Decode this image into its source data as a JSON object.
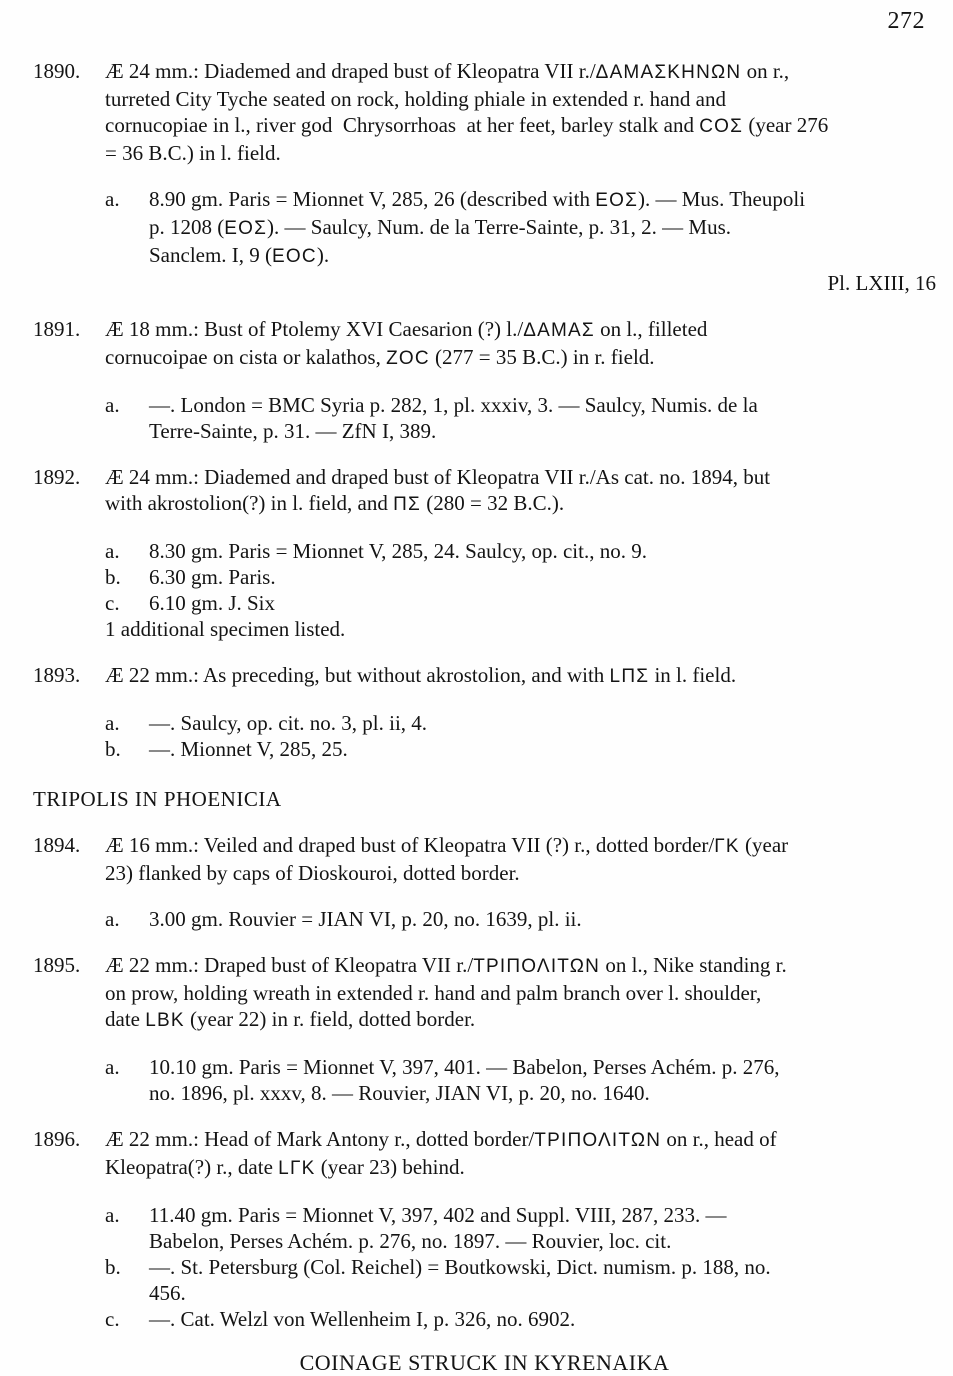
{
  "page_number": "272",
  "content": [
    {
      "type": "entry",
      "number": "1890.",
      "desc": [
        "Æ 24 mm.: Diademed and draped bust of Kleopatra VII r./ΔΑΜΑΣΚΗΝΩΝ on r.,",
        "turreted City Tyche seated on rock, holding phiale in extended r. hand and",
        "cornucopiae in l., river god  Chrysorrhoas  at her feet, barley stalk and ϹΟΣ (year 276",
        "= 36 B.C.) in l. field."
      ],
      "specimens": [
        {
          "label": "a.",
          "lines": [
            "8.90 gm. Paris = Mionnet V, 285, 26 (described with ΕΟΣ). — Mus. Theupoli",
            "p. 1208 (ΕΟΣ). — Saulcy, Num. de la Terre-Sainte, p. 31, 2. — Mus.",
            "Sanclem. I, 9 (ΕΟϹ)."
          ]
        }
      ],
      "plate": "Pl. LXIII, 16"
    },
    {
      "type": "entry",
      "number": "1891.",
      "desc": [
        "Æ 18 mm.: Bust of Ptolemy XVI Caesarion (?) l./ΔΑΜΑΣ on l., filleted",
        "cornucoipae on cista or kalathos, ΖΟϹ (277 = 35 B.C.) in r. field."
      ],
      "specimens": [
        {
          "label": "a.",
          "lines": [
            "—. London = BMC Syria p. 282, 1, pl. xxxiv, 3. — Saulcy, Numis. de la",
            "Terre-Sainte, p. 31. — ZfN I, 389."
          ]
        }
      ]
    },
    {
      "type": "entry",
      "number": "1892.",
      "desc": [
        "Æ 24 mm.: Diademed and draped bust of Kleopatra VII r./As cat. no. 1894, but",
        "with akrostolion(?) in l. field, and ΠΣ (280 = 32 B.C.)."
      ],
      "specimens": [
        {
          "label": "a.",
          "lines": [
            "8.30 gm. Paris = Mionnet V, 285, 24. Saulcy, op. cit., no. 9."
          ]
        },
        {
          "label": "b.",
          "lines": [
            "6.30 gm. Paris."
          ]
        },
        {
          "label": "c.",
          "lines": [
            "6.10 gm. J. Six"
          ]
        }
      ],
      "note": "1 additional specimen listed."
    },
    {
      "type": "entry",
      "number": "1893.",
      "desc": [
        "Æ 22 mm.: As preceding, but without akrostolion, and with LΠΣ in l. field."
      ],
      "specimens": [
        {
          "label": "a.",
          "lines": [
            "—. Saulcy, op. cit. no. 3, pl. ii, 4."
          ]
        },
        {
          "label": "b.",
          "lines": [
            "—. Mionnet V, 285, 25."
          ]
        }
      ]
    },
    {
      "type": "heading",
      "text": "TRIPOLIS IN PHOENICIA"
    },
    {
      "type": "entry",
      "number": "1894.",
      "desc": [
        "Æ 16 mm.: Veiled and draped bust of Kleopatra VII (?) r., dotted border/ΓΚ (year",
        "23) flanked by caps of Dioskouroi, dotted border."
      ],
      "specimens": [
        {
          "label": "a.",
          "lines": [
            "3.00 gm. Rouvier = JIAN VI, p. 20, no. 1639, pl. ii."
          ]
        }
      ]
    },
    {
      "type": "entry",
      "number": "1895.",
      "desc": [
        "Æ 22 mm.: Draped bust of Kleopatra VII r./ΤΡΙΠΟΛΙΤΩΝ on l., Nike standing r.",
        "on prow, holding wreath in extended r. hand and palm branch over l. shoulder,",
        "date LΒΚ (year 22) in r. field, dotted border."
      ],
      "specimens": [
        {
          "label": "a.",
          "lines": [
            "10.10 gm. Paris = Mionnet V, 397, 401. — Babelon, Perses Achém. p. 276,",
            "no. 1896, pl. xxxv, 8. — Rouvier, JIAN VI, p. 20, no. 1640."
          ]
        }
      ]
    },
    {
      "type": "entry",
      "number": "1896.",
      "desc": [
        "Æ 22 mm.: Head of Mark Antony r., dotted border/ΤΡΙΠΟΛΙΤΩΝ on r., head of",
        "Kleopatra(?) r., date LΓΚ (year 23) behind."
      ],
      "specimens": [
        {
          "label": "a.",
          "lines": [
            "11.40 gm. Paris = Mionnet V, 397, 402 and Suppl. VIII, 287, 233. —",
            "Babelon, Perses Achém. p. 276, no. 1897. — Rouvier, loc. cit."
          ]
        },
        {
          "label": "b.",
          "lines": [
            "—. St. Petersburg (Col. Reichel) = Boutkowski, Dict. numism. p. 188, no.",
            "456."
          ]
        },
        {
          "label": "c.",
          "lines": [
            "—. Cat. Welzl von Wellenheim I, p. 326, no. 6902."
          ]
        }
      ]
    },
    {
      "type": "centered_heading",
      "text": "COINAGE STRUCK IN KYRENAIKA"
    }
  ]
}
